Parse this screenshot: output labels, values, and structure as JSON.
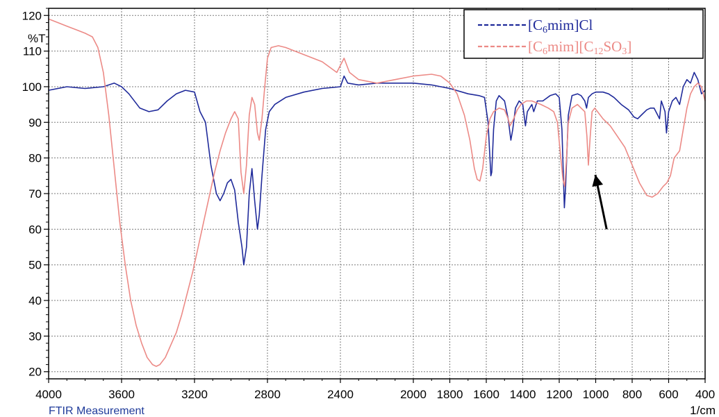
{
  "chart_data": {
    "type": "line",
    "title": "",
    "caption": "FTIR Measurement",
    "xlabel": "1/cm",
    "ylabel": "%T",
    "xlim": [
      4000,
      400
    ],
    "ylim": [
      18,
      122
    ],
    "x_ticks": [
      4000,
      3600,
      3200,
      2800,
      2400,
      2000,
      1800,
      1600,
      1400,
      1200,
      1000,
      800,
      600,
      400
    ],
    "y_ticks": [
      20,
      30,
      40,
      50,
      60,
      70,
      80,
      90,
      100,
      110,
      120
    ],
    "grid": true,
    "legend_position": "top-right",
    "legend_labels": [
      {
        "prefix": "[C",
        "sub": "6",
        "suffix": "mim]Cl"
      },
      {
        "prefix": "[C",
        "sub": "6",
        "suffix": "mim][C",
        "sub2": "12",
        "suffix2": "SO",
        "sub3": "3",
        "suffix3": "]"
      }
    ],
    "series": [
      {
        "name": "[C6mim]Cl",
        "color": "#1f2a9a",
        "points": [
          [
            4000,
            99
          ],
          [
            3900,
            100
          ],
          [
            3800,
            99.5
          ],
          [
            3700,
            100
          ],
          [
            3640,
            101
          ],
          [
            3600,
            100
          ],
          [
            3560,
            98
          ],
          [
            3500,
            94
          ],
          [
            3450,
            93
          ],
          [
            3400,
            93.5
          ],
          [
            3350,
            96
          ],
          [
            3300,
            98
          ],
          [
            3250,
            99
          ],
          [
            3200,
            98.5
          ],
          [
            3170,
            93
          ],
          [
            3140,
            90
          ],
          [
            3110,
            78
          ],
          [
            3080,
            70
          ],
          [
            3060,
            68
          ],
          [
            3040,
            70
          ],
          [
            3020,
            73
          ],
          [
            3000,
            74
          ],
          [
            2980,
            71
          ],
          [
            2960,
            62
          ],
          [
            2940,
            55
          ],
          [
            2930,
            50
          ],
          [
            2915,
            55
          ],
          [
            2900,
            70
          ],
          [
            2885,
            77
          ],
          [
            2870,
            68
          ],
          [
            2855,
            60
          ],
          [
            2845,
            64
          ],
          [
            2830,
            75
          ],
          [
            2810,
            88
          ],
          [
            2790,
            93
          ],
          [
            2760,
            95
          ],
          [
            2700,
            97
          ],
          [
            2600,
            98.5
          ],
          [
            2500,
            99.5
          ],
          [
            2400,
            100
          ],
          [
            2380,
            103
          ],
          [
            2360,
            101
          ],
          [
            2300,
            100.5
          ],
          [
            2200,
            101
          ],
          [
            2100,
            101
          ],
          [
            2000,
            101
          ],
          [
            1900,
            100.5
          ],
          [
            1800,
            99.5
          ],
          [
            1700,
            98
          ],
          [
            1640,
            97.5
          ],
          [
            1610,
            97
          ],
          [
            1590,
            90
          ],
          [
            1575,
            75
          ],
          [
            1570,
            76
          ],
          [
            1560,
            88
          ],
          [
            1545,
            96
          ],
          [
            1530,
            97.5
          ],
          [
            1500,
            96
          ],
          [
            1480,
            91
          ],
          [
            1465,
            85
          ],
          [
            1455,
            88
          ],
          [
            1440,
            94
          ],
          [
            1420,
            96
          ],
          [
            1400,
            95
          ],
          [
            1385,
            89
          ],
          [
            1375,
            93
          ],
          [
            1350,
            95
          ],
          [
            1340,
            93
          ],
          [
            1320,
            96
          ],
          [
            1290,
            96
          ],
          [
            1250,
            97.5
          ],
          [
            1220,
            98
          ],
          [
            1200,
            97
          ],
          [
            1185,
            88
          ],
          [
            1172,
            66
          ],
          [
            1165,
            72
          ],
          [
            1150,
            92
          ],
          [
            1130,
            97.5
          ],
          [
            1100,
            98
          ],
          [
            1080,
            97.5
          ],
          [
            1060,
            96
          ],
          [
            1050,
            94
          ],
          [
            1040,
            97
          ],
          [
            1020,
            98
          ],
          [
            1000,
            98.5
          ],
          [
            960,
            98.5
          ],
          [
            930,
            98
          ],
          [
            900,
            97
          ],
          [
            860,
            95
          ],
          [
            820,
            93.5
          ],
          [
            790,
            91.5
          ],
          [
            770,
            91
          ],
          [
            750,
            92
          ],
          [
            720,
            93.5
          ],
          [
            700,
            94
          ],
          [
            680,
            94
          ],
          [
            660,
            92
          ],
          [
            650,
            91
          ],
          [
            640,
            96
          ],
          [
            620,
            93
          ],
          [
            612,
            87
          ],
          [
            600,
            93
          ],
          [
            580,
            96
          ],
          [
            560,
            97
          ],
          [
            540,
            95
          ],
          [
            520,
            100
          ],
          [
            500,
            102
          ],
          [
            480,
            101
          ],
          [
            460,
            104
          ],
          [
            440,
            102
          ],
          [
            420,
            98
          ],
          [
            400,
            99
          ]
        ]
      },
      {
        "name": "[C6mim][C12SO3]",
        "color": "#ec8a86",
        "points": [
          [
            4000,
            119
          ],
          [
            3950,
            118
          ],
          [
            3900,
            117
          ],
          [
            3850,
            116
          ],
          [
            3800,
            115
          ],
          [
            3760,
            114
          ],
          [
            3730,
            111
          ],
          [
            3700,
            104
          ],
          [
            3670,
            92
          ],
          [
            3640,
            77
          ],
          [
            3610,
            62
          ],
          [
            3580,
            50
          ],
          [
            3550,
            40
          ],
          [
            3520,
            33
          ],
          [
            3490,
            28
          ],
          [
            3460,
            24
          ],
          [
            3430,
            22
          ],
          [
            3410,
            21.5
          ],
          [
            3390,
            22
          ],
          [
            3360,
            24
          ],
          [
            3330,
            27.5
          ],
          [
            3300,
            31
          ],
          [
            3270,
            36
          ],
          [
            3240,
            42
          ],
          [
            3210,
            48
          ],
          [
            3180,
            55
          ],
          [
            3150,
            62
          ],
          [
            3120,
            69
          ],
          [
            3090,
            76
          ],
          [
            3060,
            82
          ],
          [
            3030,
            87
          ],
          [
            3000,
            91
          ],
          [
            2980,
            93
          ],
          [
            2960,
            91
          ],
          [
            2945,
            76
          ],
          [
            2930,
            70
          ],
          [
            2915,
            78
          ],
          [
            2900,
            92
          ],
          [
            2885,
            97
          ],
          [
            2870,
            95
          ],
          [
            2855,
            87
          ],
          [
            2845,
            85
          ],
          [
            2830,
            91
          ],
          [
            2815,
            100
          ],
          [
            2800,
            108
          ],
          [
            2780,
            111
          ],
          [
            2740,
            111.5
          ],
          [
            2700,
            111
          ],
          [
            2600,
            109
          ],
          [
            2500,
            107
          ],
          [
            2420,
            104
          ],
          [
            2380,
            108
          ],
          [
            2350,
            104
          ],
          [
            2300,
            102
          ],
          [
            2200,
            101
          ],
          [
            2100,
            102
          ],
          [
            2000,
            103
          ],
          [
            1900,
            103.5
          ],
          [
            1850,
            103
          ],
          [
            1800,
            101
          ],
          [
            1760,
            98
          ],
          [
            1720,
            92
          ],
          [
            1690,
            85
          ],
          [
            1665,
            77
          ],
          [
            1650,
            74
          ],
          [
            1635,
            73.5
          ],
          [
            1620,
            77
          ],
          [
            1600,
            86
          ],
          [
            1580,
            91
          ],
          [
            1560,
            93
          ],
          [
            1530,
            94
          ],
          [
            1500,
            93.5
          ],
          [
            1480,
            91
          ],
          [
            1470,
            89
          ],
          [
            1450,
            91
          ],
          [
            1430,
            93.5
          ],
          [
            1410,
            95
          ],
          [
            1380,
            96
          ],
          [
            1350,
            96
          ],
          [
            1300,
            95
          ],
          [
            1260,
            94
          ],
          [
            1230,
            93
          ],
          [
            1210,
            90
          ],
          [
            1195,
            82
          ],
          [
            1180,
            74
          ],
          [
            1170,
            72
          ],
          [
            1160,
            80
          ],
          [
            1150,
            90
          ],
          [
            1130,
            94
          ],
          [
            1100,
            95
          ],
          [
            1080,
            94
          ],
          [
            1060,
            93
          ],
          [
            1048,
            86
          ],
          [
            1040,
            78
          ],
          [
            1030,
            86
          ],
          [
            1020,
            93
          ],
          [
            1005,
            94
          ],
          [
            990,
            93
          ],
          [
            960,
            91
          ],
          [
            920,
            89
          ],
          [
            880,
            86
          ],
          [
            840,
            83
          ],
          [
            800,
            78
          ],
          [
            760,
            73
          ],
          [
            720,
            69.5
          ],
          [
            690,
            69
          ],
          [
            660,
            70
          ],
          [
            630,
            72
          ],
          [
            610,
            73
          ],
          [
            590,
            75
          ],
          [
            570,
            80
          ],
          [
            540,
            82
          ],
          [
            520,
            88
          ],
          [
            500,
            94
          ],
          [
            480,
            98
          ],
          [
            460,
            100
          ],
          [
            440,
            101
          ],
          [
            420,
            100
          ],
          [
            400,
            96
          ]
        ]
      }
    ],
    "annotations": [
      {
        "type": "arrow",
        "points_to": [
          1040,
          78
        ],
        "from": [
          940,
          60
        ]
      }
    ]
  }
}
